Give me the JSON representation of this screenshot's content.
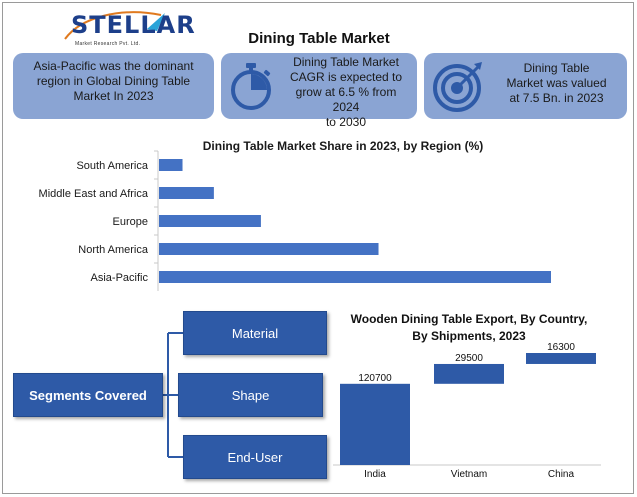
{
  "logo": {
    "name": "STELLAR",
    "tagline": "Market Research Pvt. Ltd."
  },
  "title": "Dining Table Market",
  "stats": [
    {
      "text_lines": [
        "Asia-Pacific was the dominant",
        "region in Global Dining Table",
        "Market In 2023"
      ]
    },
    {
      "icon": "stopwatch-icon",
      "text_lines": [
        "Dining Table Market",
        "CAGR is expected to",
        "grow at 6.5 % from 2024",
        "to 2030"
      ]
    },
    {
      "icon": "target-icon",
      "text_lines": [
        "Dining Table",
        "Market was valued",
        "at 7.5 Bn. in 2023"
      ]
    }
  ],
  "segments": {
    "label": "Segments Covered",
    "items": [
      "Material",
      "Shape",
      "End-User"
    ]
  },
  "colors": {
    "accent": "#2e5aa7",
    "stat_box": "#8aa4d3",
    "bar": "#4472c4"
  },
  "chart_data": [
    {
      "type": "bar",
      "orientation": "horizontal",
      "title": "Dining Table Market Share in 2023, by Region (%)",
      "categories": [
        "South America",
        "Middle East and Africa",
        "Europe",
        "North America",
        "Asia-Pacific"
      ],
      "values": [
        3,
        7,
        13,
        28,
        50
      ],
      "xlim": [
        0,
        50
      ],
      "grid": false
    },
    {
      "type": "bar",
      "subtype": "waterfall",
      "title": "Wooden Dining Table Export, By Country, By Shipments, 2023",
      "title_lines": [
        "Wooden Dining Table Export, By Country,",
        "By Shipments, 2023"
      ],
      "categories": [
        "India",
        "Vietnam",
        "China"
      ],
      "values": [
        120700,
        29500,
        16300
      ],
      "value_labels": [
        "120700",
        "29500",
        "16300"
      ],
      "grid": false
    }
  ]
}
